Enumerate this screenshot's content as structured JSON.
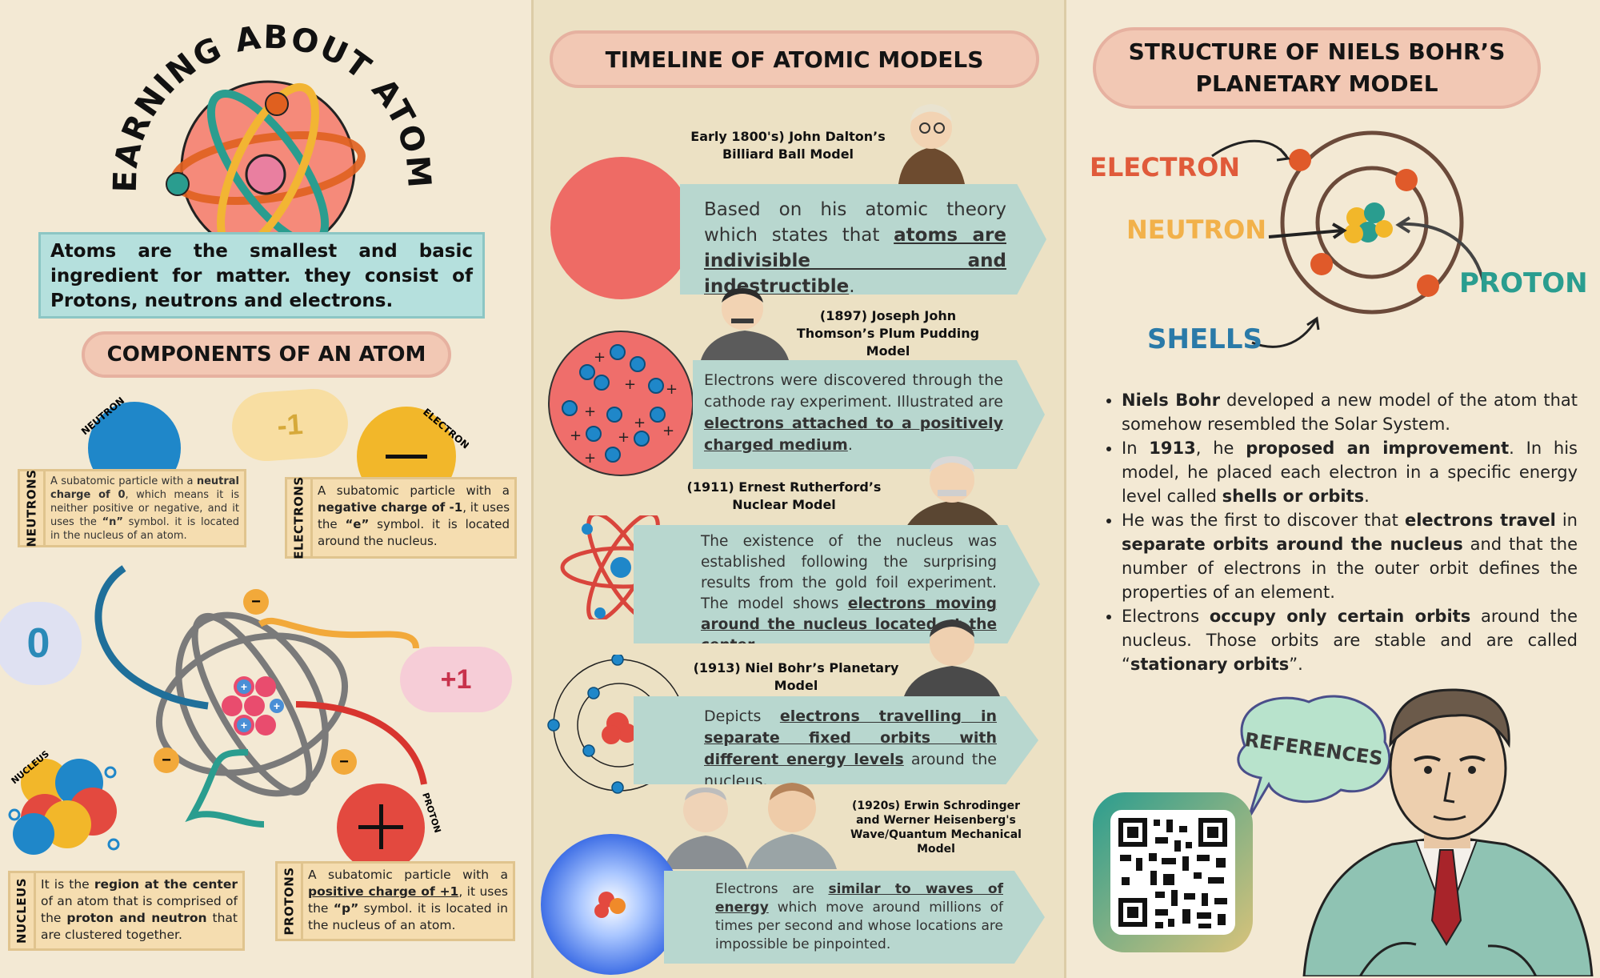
{
  "intro": {
    "title": "LEARNING ABOUT ATOMS",
    "desc": "Atoms are the smallest and basic ingredient for matter. they consist of Protons, neutrons and electrons."
  },
  "components": {
    "title": "COMPONENTS OF AN ATOM",
    "labels": {
      "neutron": "NEUTRON",
      "electron": "ELECTRON",
      "nucleus": "NUCLEUS",
      "proton": "PROTON"
    },
    "clouds": {
      "minus_one": "-1",
      "zero": "0",
      "plus_one": "+1"
    },
    "neutrons": {
      "side": "NEUTRONS",
      "t1": "A subatomic particle with a ",
      "b1": "neutral charge of 0",
      "t2": ", which means it is neither positive or negative, and it uses the ",
      "b2": "“n”",
      "t3": " symbol. it is located in the nucleus of an atom."
    },
    "electrons": {
      "side": "ELECTRONS",
      "t1": "A subatomic particle with a ",
      "b1": "negative charge of -1",
      "t2": ", it uses the ",
      "b2": "“e”",
      "t3": " symbol. it is located around the nucleus."
    },
    "nucleus": {
      "side": "NUCLEUS",
      "t1": "It is the ",
      "b1": "region at the center",
      "t2": " of an atom that is comprised of the ",
      "b2": "proton and neutron",
      "t3": " that are clustered together."
    },
    "protons": {
      "side": "PROTONS",
      "t1": "A subatomic particle with a ",
      "b1": "positive charge of +1",
      "t2": ", it uses the ",
      "b2": "“p”",
      "t3": " symbol. it is located in the nucleus of an atom."
    }
  },
  "timeline": {
    "title": "TIMELINE OF ATOMIC MODELS",
    "items": [
      {
        "title": "Early 1800's) John Dalton’s Billiard Ball Model",
        "t1": "Based on his atomic theory which states that ",
        "u": "atoms are indivisible and indestructible",
        "t2": "."
      },
      {
        "title": "(1897) Joseph John Thomson’s Plum Pudding Model",
        "t1": "Electrons were discovered through the cathode ray experiment. Illustrated are ",
        "u": "electrons attached to a positively charged medium",
        "t2": "."
      },
      {
        "title": "(1911) Ernest Rutherford’s Nuclear Model",
        "t1": "The existence of the nucleus was established following the surprising results from the gold foil experiment. The model shows ",
        "u": "electrons moving around the nucleus located at the center",
        "t2": "."
      },
      {
        "title": "(1913) Niel Bohr’s Planetary Model",
        "t1": "Depicts ",
        "u": "electrons travelling in separate fixed orbits with different energy levels",
        "t2": " around the nucleus."
      },
      {
        "title": "(1920s) Erwin Schrodinger and Werner Heisenberg's Wave/Quantum Mechanical Model",
        "t1": "Electrons are ",
        "u": "similar to waves of energy",
        "t2": " which move around millions of times per second and whose locations are impossible be pinpointed."
      }
    ]
  },
  "bohr": {
    "title": "STRUCTURE OF NIELS BOHR’S PLANETARY MODEL",
    "labels": {
      "electron": "ELECTRON",
      "neutron": "NEUTRON",
      "proton": "PROTON",
      "shells": "SHELLS"
    },
    "colors": {
      "electron": "#e05a3a",
      "neutron": "#f2b14a",
      "proton": "#2a9d8f",
      "shells": "#2a7aa8"
    },
    "bullets": [
      {
        "b1": "Niels Bohr",
        "t1": " developed a new model of the atom that somehow resembled the Solar System."
      },
      {
        "t0": "In ",
        "b1": "1913",
        "t1": ", he ",
        "b2": "proposed an improvement",
        "t2": ". In his model, he placed each electron in a specific energy level called ",
        "b3": "shells or orbits",
        "t3": "."
      },
      {
        "t0": "He was the first to discover that ",
        "b1": "electrons travel",
        "t1": " in ",
        "b2": "separate orbits around the nucleus",
        "t2": " and that the number of electrons in the outer orbit defines the properties of an element."
      },
      {
        "t0": "Electrons ",
        "b1": "occupy only certain orbits",
        "t1": " around the nucleus. Those orbits are stable and are called “",
        "b2": "stationary orbits",
        "t2": "”."
      }
    ],
    "references": "REFERENCES"
  }
}
